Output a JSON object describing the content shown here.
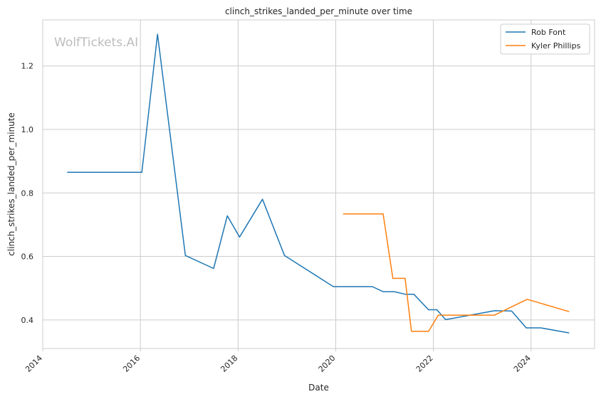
{
  "chart_data": {
    "type": "line",
    "title": "clinch_strikes_landed_per_minute over time",
    "xlabel": "Date",
    "ylabel": "clinch_strikes_landed_per_minute",
    "watermark": "WolfTickets.AI",
    "xlim": [
      2014.0,
      2025.3
    ],
    "ylim": [
      0.31,
      1.345
    ],
    "x_ticks": [
      2014,
      2016,
      2018,
      2020,
      2022,
      2024
    ],
    "y_ticks": [
      0.4,
      0.6,
      0.8,
      1.0,
      1.2
    ],
    "y_tick_labels": [
      "0.4",
      "0.6",
      "0.8",
      "1.0",
      "1.2"
    ],
    "grid": true,
    "legend_position": "top-right",
    "series": [
      {
        "name": "Rob Font",
        "color": "#1f77b4",
        "points": [
          [
            2014.5,
            0.865
          ],
          [
            2016.03,
            0.865
          ],
          [
            2016.35,
            1.3
          ],
          [
            2016.92,
            0.603
          ],
          [
            2017.5,
            0.562
          ],
          [
            2017.78,
            0.728
          ],
          [
            2018.03,
            0.661
          ],
          [
            2018.5,
            0.78
          ],
          [
            2018.95,
            0.603
          ],
          [
            2019.95,
            0.505
          ],
          [
            2020.75,
            0.505
          ],
          [
            2020.97,
            0.489
          ],
          [
            2021.2,
            0.489
          ],
          [
            2021.42,
            0.481
          ],
          [
            2021.6,
            0.481
          ],
          [
            2021.9,
            0.432
          ],
          [
            2022.07,
            0.432
          ],
          [
            2022.25,
            0.401
          ],
          [
            2023.25,
            0.429
          ],
          [
            2023.6,
            0.428
          ],
          [
            2023.9,
            0.375
          ],
          [
            2024.2,
            0.375
          ],
          [
            2024.78,
            0.359
          ]
        ]
      },
      {
        "name": "Kyler Phillips",
        "color": "#ff7f0e",
        "points": [
          [
            2020.15,
            0.734
          ],
          [
            2020.97,
            0.734
          ],
          [
            2021.17,
            0.531
          ],
          [
            2021.42,
            0.531
          ],
          [
            2021.55,
            0.364
          ],
          [
            2021.9,
            0.364
          ],
          [
            2022.1,
            0.415
          ],
          [
            2023.25,
            0.415
          ],
          [
            2023.92,
            0.465
          ],
          [
            2024.78,
            0.426
          ]
        ]
      }
    ]
  }
}
